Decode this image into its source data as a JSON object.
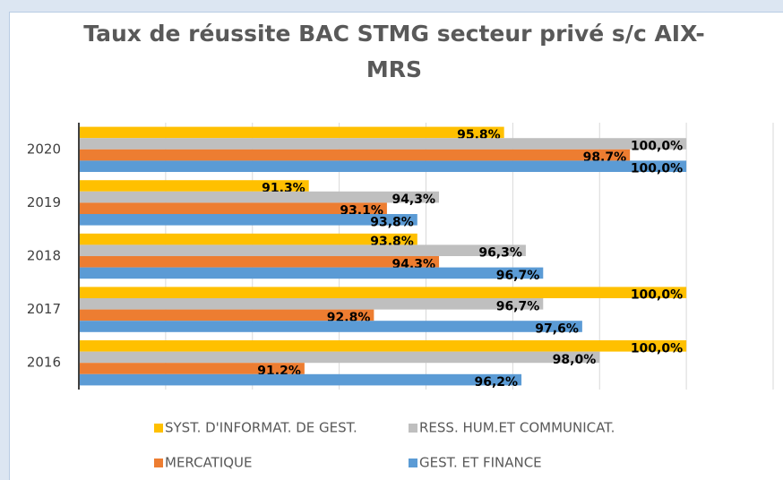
{
  "chart_data": {
    "type": "bar",
    "orientation": "horizontal",
    "title": "Taux de réussite BAC STMG secteur privé s/c AIX-MRS",
    "categories": [
      "2016",
      "2017",
      "2018",
      "2019",
      "2020"
    ],
    "series": [
      {
        "name": "SYST. D'INFORMAT. DE GEST.",
        "color": "#ffc000",
        "values": [
          100,
          100,
          93.8,
          91.3,
          95.8
        ],
        "value_labels": [
          "100,0%",
          "100,0%",
          "93,8%",
          "91,3%",
          "95,8%"
        ]
      },
      {
        "name": "RESS. HUM.ET COMMUNICAT.",
        "color": "#bfbfbf",
        "values": [
          98.0,
          96.7,
          96.3,
          94.3,
          100
        ],
        "value_labels": [
          "98,0%",
          "96,7%",
          "96,3%",
          "94,3%",
          "100,0%"
        ]
      },
      {
        "name": "MERCATIQUE",
        "color": "#ed7d31",
        "values": [
          91.2,
          92.8,
          94.3,
          93.1,
          98.7
        ],
        "value_labels": [
          "91,2%",
          "92,8%",
          "94,3%",
          "93,1%",
          "98,7%"
        ]
      },
      {
        "name": "GEST. ET FINANCE",
        "color": "#5b9bd5",
        "values": [
          96.2,
          97.6,
          96.7,
          93.8,
          100
        ],
        "value_labels": [
          "96,2%",
          "97,6%",
          "96,7%",
          "93,8%",
          "100,0%"
        ]
      }
    ],
    "xlim": [
      86,
      102
    ],
    "xticks": [
      86,
      88,
      90,
      92,
      94,
      96,
      98,
      100,
      102
    ],
    "grid": true
  }
}
